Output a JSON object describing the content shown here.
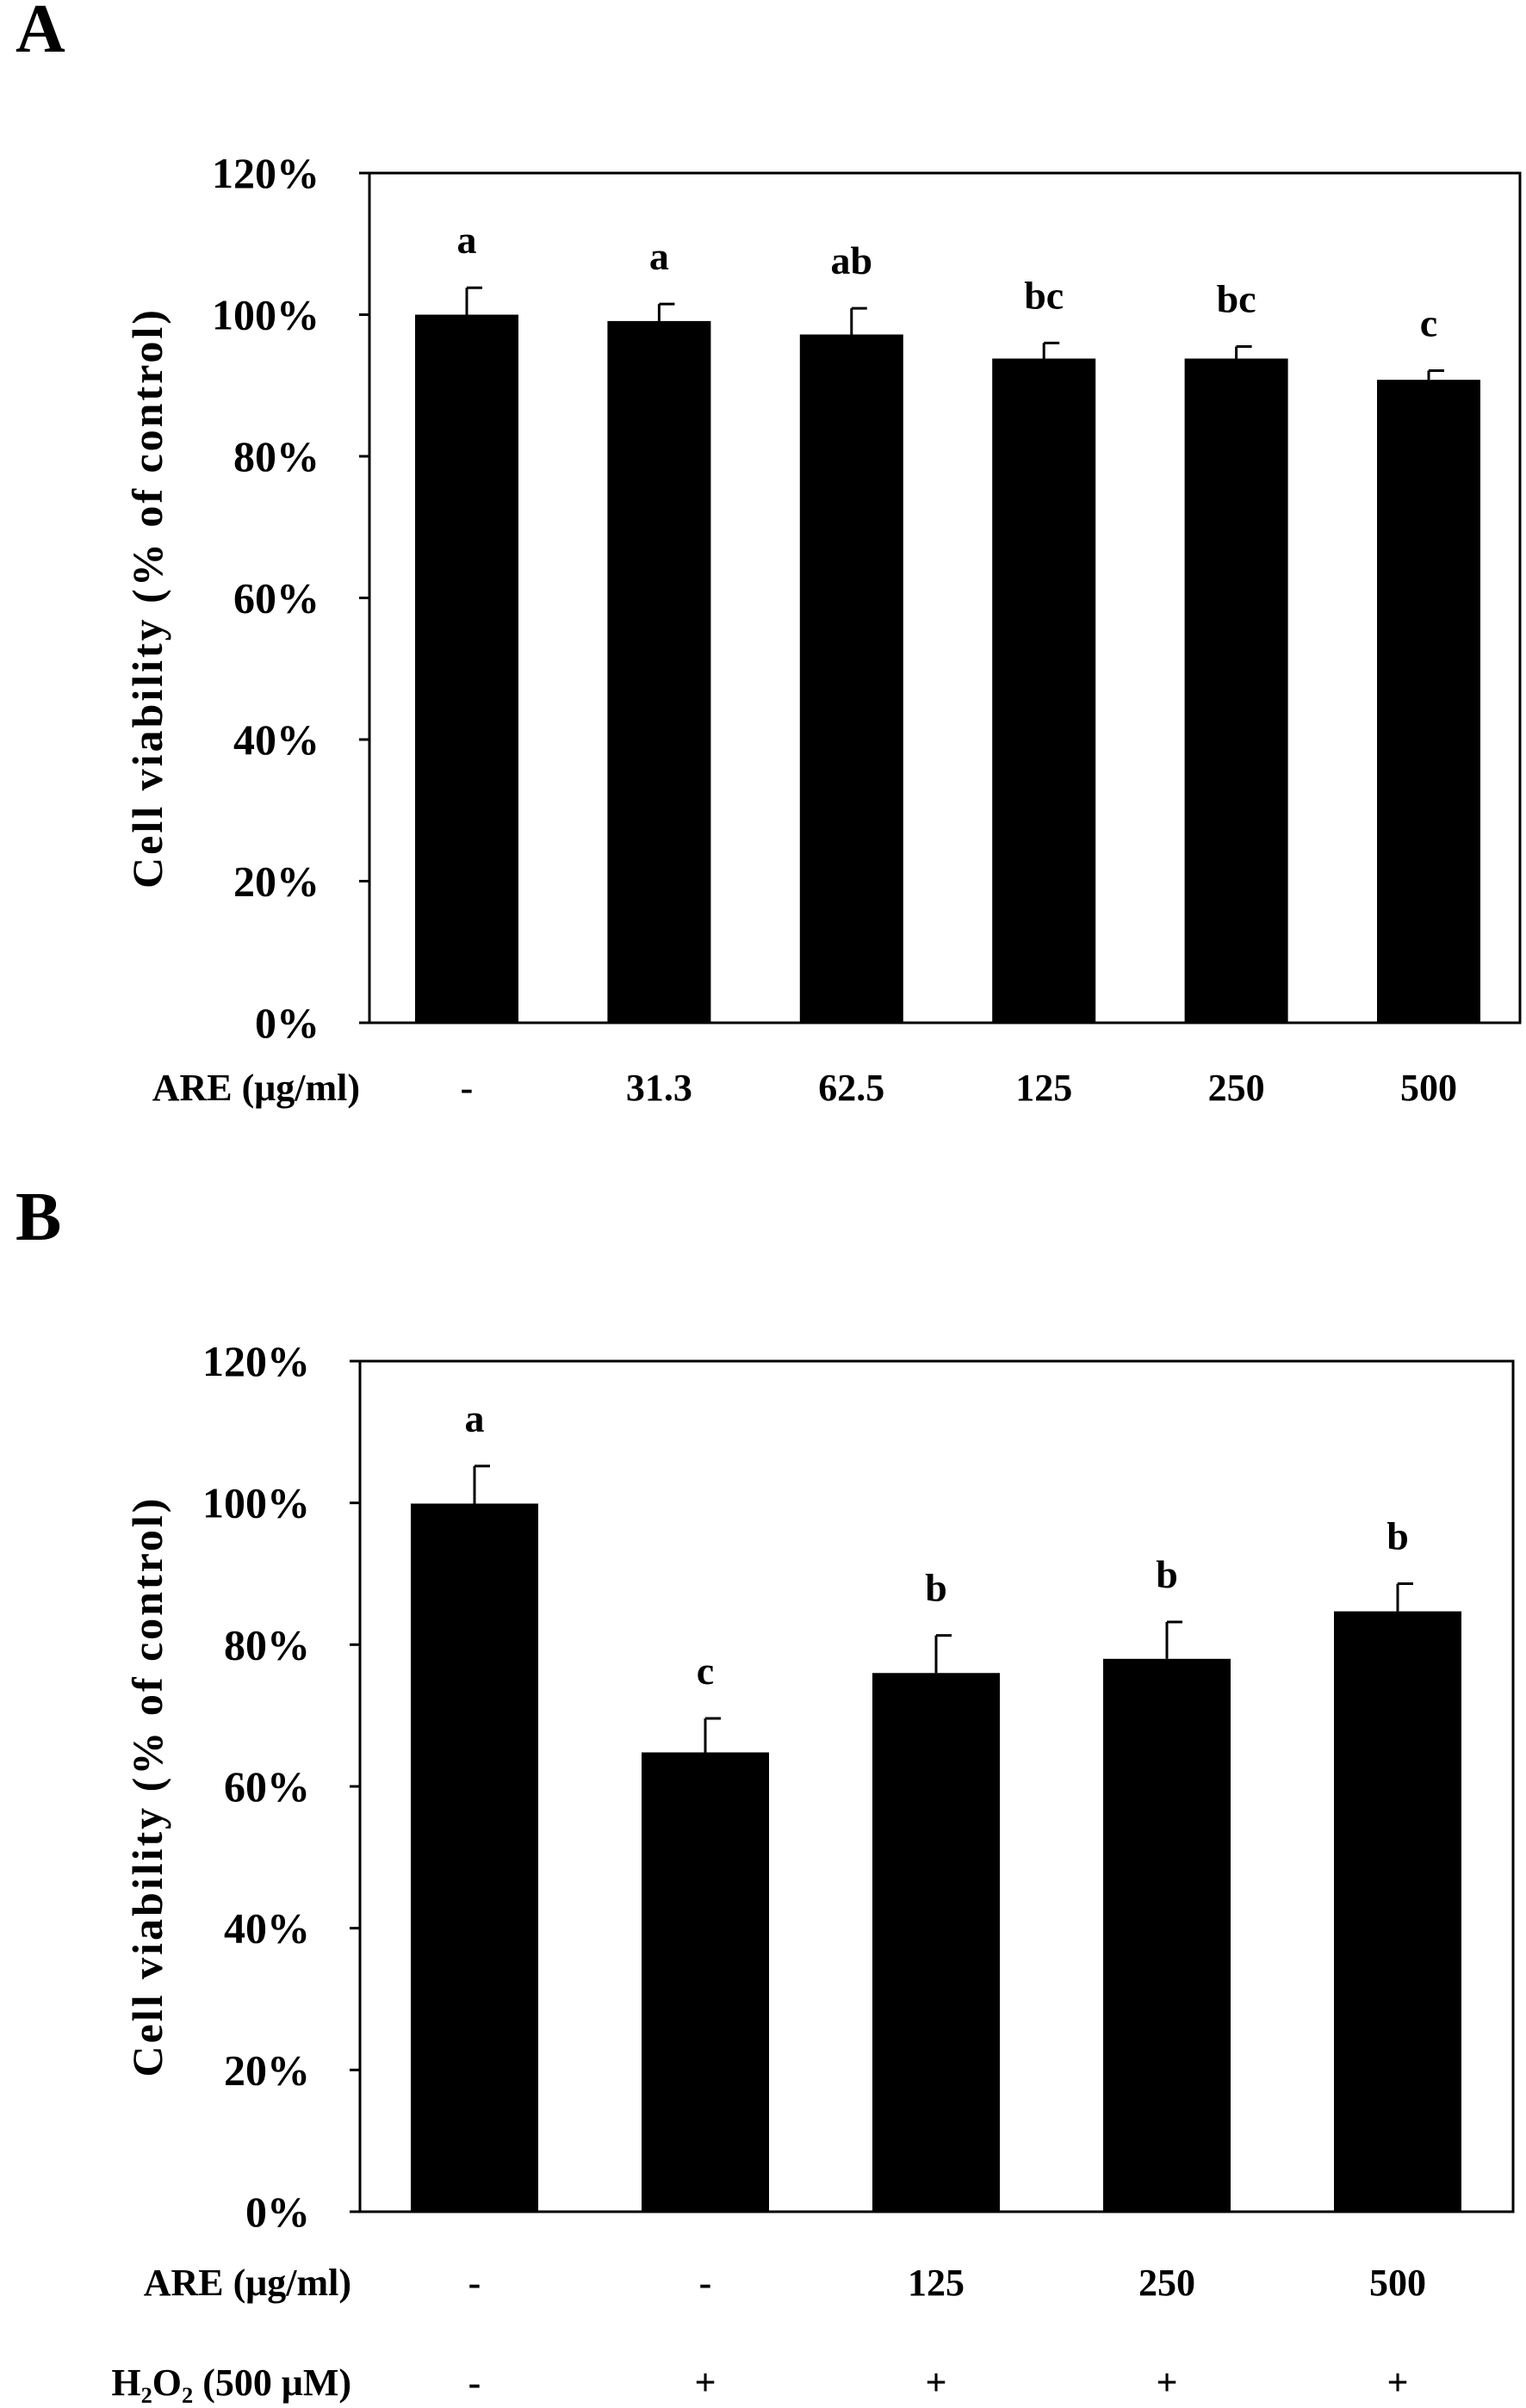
{
  "chart_data": [
    {
      "panel_label": "A",
      "type": "bar",
      "ylabel": "Cell viability (% of control)",
      "ylim": [
        0,
        120
      ],
      "yticks": [
        "0%",
        "20%",
        "40%",
        "60%",
        "80%",
        "100%",
        "120%"
      ],
      "grid": false,
      "bar_color": "#000000",
      "row_labels": [
        "ARE (μg/ml)"
      ],
      "rows": [
        [
          "-",
          "31.3",
          "62.5",
          "125",
          "250",
          "500"
        ]
      ],
      "values": [
        100.0,
        99.1,
        97.2,
        93.8,
        93.8,
        90.8
      ],
      "errors": [
        3.8,
        2.4,
        3.7,
        2.2,
        1.7,
        1.3
      ],
      "significance": [
        "a",
        "a",
        "ab",
        "bc",
        "bc",
        "c"
      ]
    },
    {
      "panel_label": "B",
      "type": "bar",
      "ylabel": "Cell viability (% of control)",
      "ylim": [
        0,
        120
      ],
      "yticks": [
        "0%",
        "20%",
        "40%",
        "60%",
        "80%",
        "100%",
        "120%"
      ],
      "grid": false,
      "bar_color": "#000000",
      "row_labels": [
        "ARE (μg/ml)",
        "H₂O₂ (500 μM)"
      ],
      "rows": [
        [
          "-",
          "-",
          "125",
          "250",
          "500"
        ],
        [
          "-",
          "+",
          "+",
          "+",
          "+"
        ]
      ],
      "values": [
        99.9,
        64.8,
        76.0,
        78.0,
        84.7
      ],
      "errors": [
        5.3,
        4.8,
        5.3,
        5.2,
        3.9
      ],
      "significance": [
        "a",
        "c",
        "b",
        "b",
        "b"
      ]
    }
  ]
}
